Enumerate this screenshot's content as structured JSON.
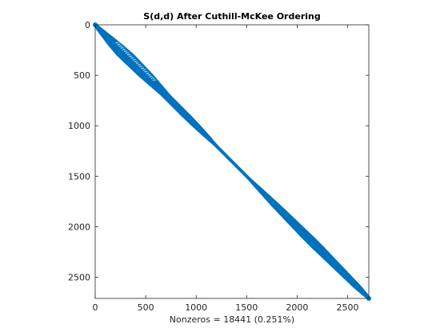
{
  "chart_data": {
    "type": "scatter",
    "plot_kind": "sparsity pattern (spy)",
    "title": "S(d,d) After Cuthill-McKee Ordering",
    "xlabel": "Nonzeros = 18441 (0.251%)",
    "ylabel": "",
    "matrix_size": 2710,
    "nonzeros": 18441,
    "density_percent": 0.251,
    "xlim": [
      0,
      2710
    ],
    "ylim": [
      2710,
      0
    ],
    "y_reversed": true,
    "x_ticks": [
      0,
      500,
      1000,
      1500,
      2000,
      2500
    ],
    "y_ticks": [
      0,
      500,
      1000,
      1500,
      2000,
      2500
    ],
    "x_tick_labels": [
      "0",
      "500",
      "1000",
      "1500",
      "2000",
      "2500"
    ],
    "y_tick_labels": [
      "0",
      "500",
      "1000",
      "1500",
      "2000",
      "2500"
    ],
    "grid": false,
    "marker_color": "#0072BD",
    "band": {
      "row": [
        0,
        100,
        200,
        300,
        400,
        500,
        600,
        700,
        800,
        900,
        1000,
        1100,
        1200,
        1300,
        1400,
        1500,
        1600,
        1700,
        1800,
        1900,
        2000,
        2100,
        2200,
        2300,
        2400,
        2500,
        2600,
        2710
      ],
      "halfwidth": [
        20,
        45,
        70,
        85,
        80,
        75,
        60,
        45,
        45,
        45,
        40,
        30,
        15,
        8,
        8,
        12,
        25,
        35,
        45,
        50,
        55,
        60,
        60,
        55,
        50,
        45,
        40,
        20
      ]
    }
  }
}
